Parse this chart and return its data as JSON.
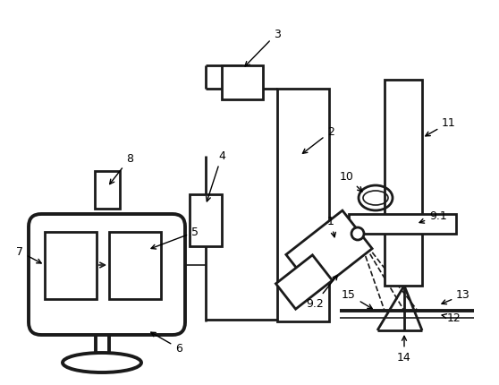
{
  "bg_color": "#ffffff",
  "line_color": "#1a1a1a",
  "lw": 2.0,
  "lw_thin": 1.2,
  "lw_thick": 2.8
}
